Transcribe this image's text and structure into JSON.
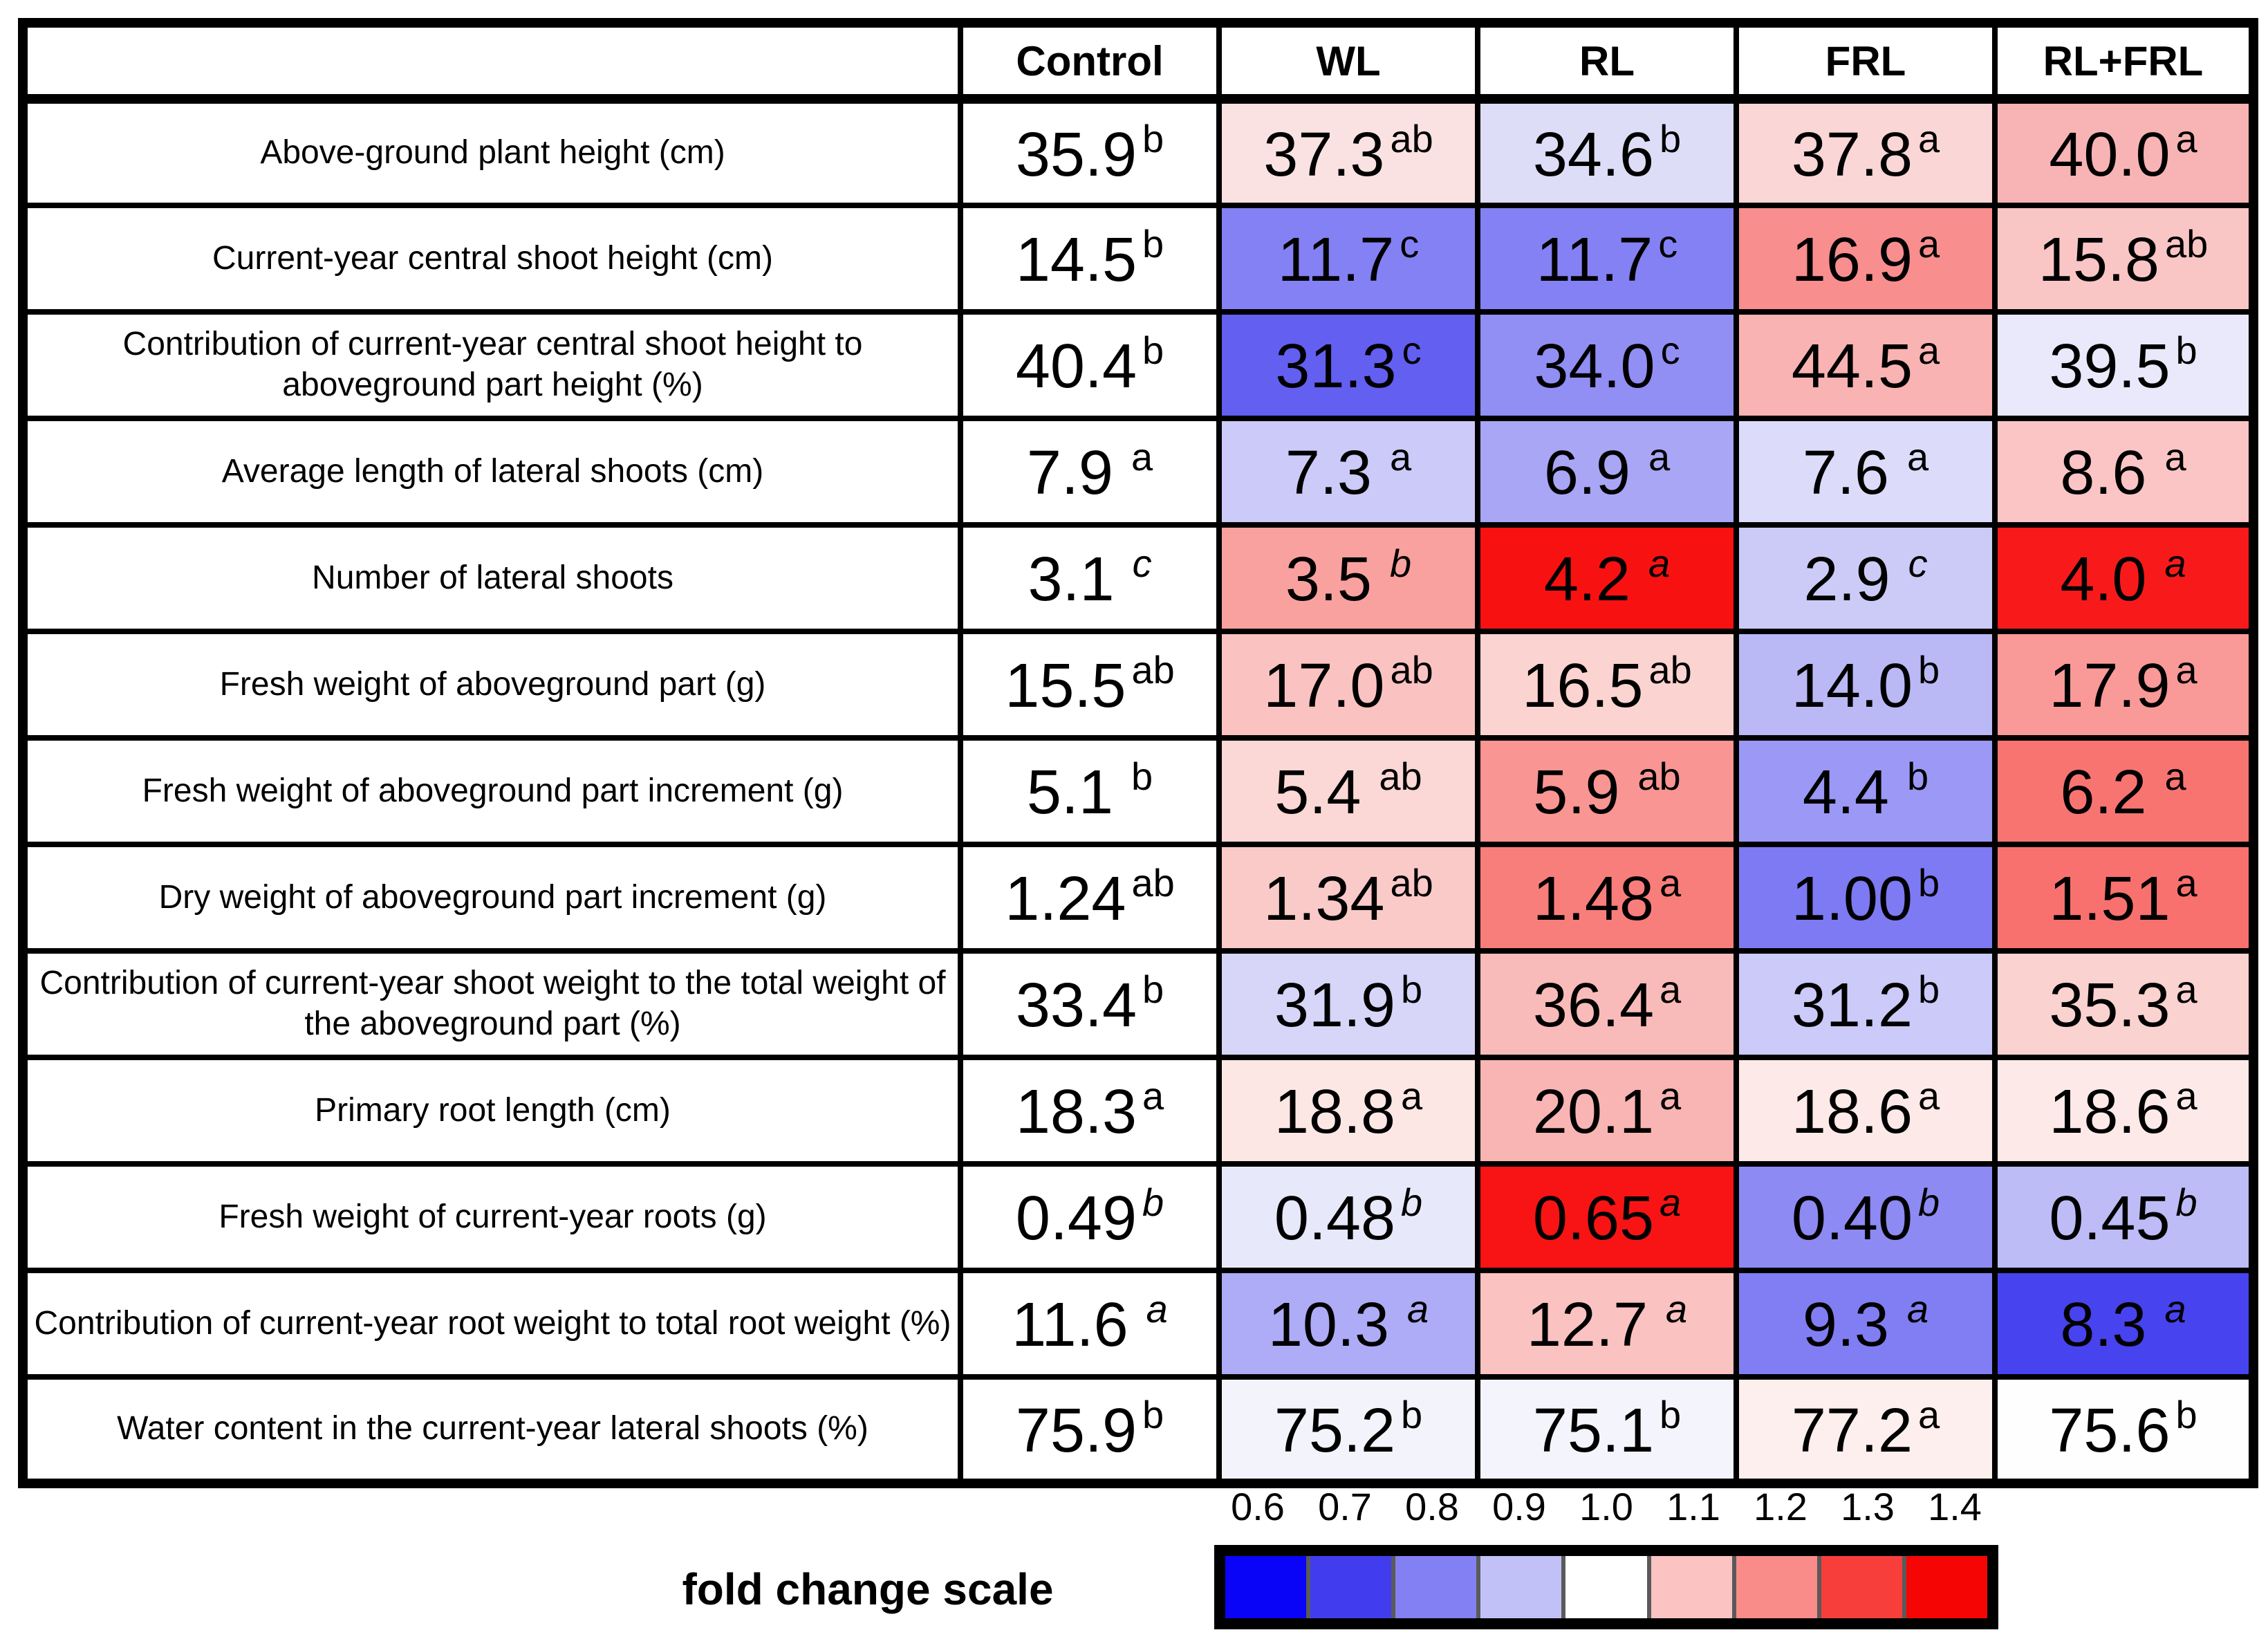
{
  "chart_data": {
    "type": "heatmap",
    "title": "",
    "columns": [
      "Control",
      "WL",
      "RL",
      "FRL",
      "RL+FRL"
    ],
    "rows": [
      {
        "label": "Above-ground plant height (cm)",
        "spaced": false,
        "italic_letters": false,
        "values": [
          "35.9",
          "37.3",
          "34.6",
          "37.8",
          "40.0"
        ],
        "letters": [
          "b",
          "ab",
          "b",
          "a",
          "a"
        ],
        "cell_colors": [
          "#FFFFFF",
          "#FBE2E2",
          "#DEDDF8",
          "#FAD6D6",
          "#F8B4B4"
        ]
      },
      {
        "label": "Current-year central shoot height (cm)",
        "spaced": false,
        "italic_letters": false,
        "values": [
          "14.5",
          "11.7",
          "11.7",
          "16.9",
          "15.8"
        ],
        "letters": [
          "b",
          "c",
          "c",
          "a",
          "ab"
        ],
        "cell_colors": [
          "#FFFFFF",
          "#8481F4",
          "#8481F4",
          "#F88E8E",
          "#FAC6C5"
        ]
      },
      {
        "label": "Contribution of current-year central shoot height to aboveground part height (%)",
        "spaced": false,
        "italic_letters": false,
        "values": [
          "40.4",
          "31.3",
          "34.0",
          "44.5",
          "39.5"
        ],
        "letters": [
          "b",
          "c",
          "c",
          "a",
          "b"
        ],
        "cell_colors": [
          "#FFFFFF",
          "#625FF1",
          "#918EF4",
          "#F9B3B2",
          "#E9E9FB"
        ]
      },
      {
        "label": "Average length of lateral shoots (cm)",
        "spaced": true,
        "italic_letters": false,
        "values": [
          "7.9",
          "7.3",
          "6.9",
          "7.6",
          "8.6"
        ],
        "letters": [
          "a",
          "a",
          "a",
          "a",
          "a"
        ],
        "cell_colors": [
          "#FFFFFF",
          "#CBCAF8",
          "#A8A6F5",
          "#DCDBF9",
          "#FAC5C4"
        ]
      },
      {
        "label": "Number of lateral shoots",
        "spaced": true,
        "italic_letters": true,
        "values": [
          "3.1",
          "3.5",
          "4.2",
          "2.9",
          "4.0"
        ],
        "letters": [
          "c",
          "b",
          "a",
          "c",
          "a"
        ],
        "cell_colors": [
          "#FFFFFF",
          "#F9A19F",
          "#F81111",
          "#CCCBF8",
          "#F81A1A"
        ]
      },
      {
        "label": "Fresh weight of aboveground part (g)",
        "spaced": false,
        "italic_letters": false,
        "values": [
          "15.5",
          "17.0",
          "16.5",
          "14.0",
          "17.9"
        ],
        "letters": [
          "ab",
          "ab",
          "ab",
          "b",
          "a"
        ],
        "cell_colors": [
          "#FFFFFF",
          "#FAC3C1",
          "#FBD3D1",
          "#BAB9F6",
          "#F99A98"
        ]
      },
      {
        "label": "Fresh weight of aboveground part increment (g)",
        "spaced": true,
        "italic_letters": false,
        "values": [
          "5.1",
          "5.4",
          "5.9",
          "4.4",
          "6.2"
        ],
        "letters": [
          "b",
          "ab",
          "ab",
          "b",
          "a"
        ],
        "cell_colors": [
          "#FFFFFF",
          "#FBD7D5",
          "#F99592",
          "#9B99F5",
          "#F87471"
        ]
      },
      {
        "label": "Dry weight of aboveground part increment (g)",
        "spaced": false,
        "italic_letters": false,
        "values": [
          "1.24",
          "1.34",
          "1.48",
          "1.00",
          "1.51"
        ],
        "letters": [
          "ab",
          "ab",
          "a",
          "b",
          "a"
        ],
        "cell_colors": [
          "#FFFFFF",
          "#FACAC8",
          "#F87E7B",
          "#7D7AF3",
          "#F8716E"
        ]
      },
      {
        "label": "Contribution of current-year shoot weight to the total weight of the aboveground part (%)",
        "spaced": false,
        "italic_letters": false,
        "values": [
          "33.4",
          "31.9",
          "36.4",
          "31.2",
          "35.3"
        ],
        "letters": [
          "b",
          "b",
          "a",
          "b",
          "a"
        ],
        "cell_colors": [
          "#FFFFFF",
          "#D7D6F9",
          "#F9BBB9",
          "#CBCAF8",
          "#FAD2D0"
        ]
      },
      {
        "label": "Primary root length (cm)",
        "spaced": false,
        "italic_letters": false,
        "values": [
          "18.3",
          "18.8",
          "20.1",
          "18.6",
          "18.6"
        ],
        "letters": [
          "a",
          "a",
          "a",
          "a",
          "a"
        ],
        "cell_colors": [
          "#FFFFFF",
          "#FDE7E5",
          "#F9B5B3",
          "#FDEAE8",
          "#FDEAE8"
        ]
      },
      {
        "label": "Fresh weight of current-year roots (g)",
        "spaced": false,
        "italic_letters": true,
        "values": [
          "0.49",
          "0.48",
          "0.65",
          "0.40",
          "0.45"
        ],
        "letters": [
          "b",
          "b",
          "a",
          "b",
          "b"
        ],
        "cell_colors": [
          "#FFFFFF",
          "#E8E8FB",
          "#F81414",
          "#8D8AF4",
          "#BDBCF7"
        ]
      },
      {
        "label": "Contribution of current-year root weight to total root weight (%)",
        "spaced": true,
        "italic_letters": true,
        "values": [
          "11.6",
          "10.3",
          "12.7",
          "9.3",
          "8.3"
        ],
        "letters": [
          "a",
          "a",
          "a",
          "a",
          "a"
        ],
        "cell_colors": [
          "#FFFFFF",
          "#AEACF6",
          "#FAC2C0",
          "#817EF3",
          "#4743EF"
        ]
      },
      {
        "label": "Water content in the current-year lateral shoots (%)",
        "spaced": false,
        "italic_letters": false,
        "values": [
          "75.9",
          "75.2",
          "75.1",
          "77.2",
          "75.6"
        ],
        "letters": [
          "b",
          "b",
          "b",
          "a",
          "b"
        ],
        "cell_colors": [
          "#FFFFFF",
          "#F3F3FC",
          "#F4F4FC",
          "#FCEFED",
          "#FEFEFE"
        ]
      }
    ],
    "legend": {
      "label": "fold change scale",
      "ticks": [
        "0.6",
        "0.7",
        "0.8",
        "0.9",
        "1.0",
        "1.1",
        "1.2",
        "1.3",
        "1.4"
      ],
      "colors": [
        "#0903F8",
        "#413DEF",
        "#8280F3",
        "#C2C1F7",
        "#FFFFFF",
        "#FBC3C2",
        "#F98B88",
        "#F83E3B",
        "#F60505"
      ],
      "divider_color": "#5A5A5A"
    }
  }
}
